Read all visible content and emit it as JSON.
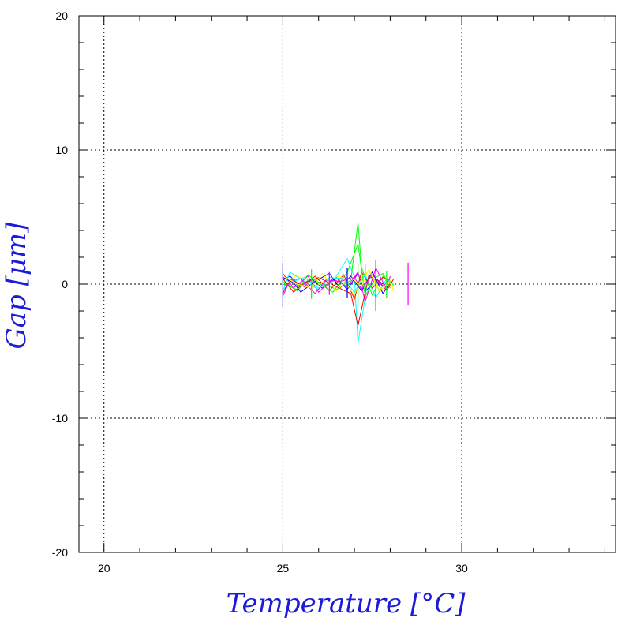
{
  "chart_data": {
    "type": "line",
    "title": "",
    "xlabel": "Temperature [°C]",
    "ylabel": "Gap [μm]",
    "xlim": [
      19.3,
      34.3
    ],
    "ylim": [
      -20,
      20
    ],
    "x_ticks": [
      "20",
      "25",
      "30"
    ],
    "y_ticks": [
      "20",
      "10",
      "0",
      "-10",
      "-20"
    ],
    "x_tick_values": [
      20,
      25,
      30
    ],
    "y_tick_values": [
      20,
      10,
      0,
      -10,
      -20
    ],
    "x_minor_step": 1,
    "y_minor_step": 2,
    "grid": true,
    "series_colors": [
      "#0000ff",
      "#00ffff",
      "#00ff00",
      "#ff0000",
      "#ff00ff",
      "#ffff00"
    ],
    "series": [
      {
        "x": [
          25.0,
          25.2,
          25.5,
          25.8,
          26.1,
          26.5,
          26.8,
          27.1,
          27.3,
          27.6,
          27.9
        ],
        "y": [
          0.3,
          0.6,
          -0.2,
          0.4,
          -0.3,
          0.5,
          -0.4,
          0.8,
          -0.6,
          0.4,
          -0.2
        ]
      },
      {
        "x": [
          25.0,
          25.3,
          25.6,
          26.0,
          26.4,
          26.8,
          27.0,
          27.1,
          27.4,
          27.7,
          28.0
        ],
        "y": [
          -0.4,
          0.2,
          0.5,
          -0.3,
          0.2,
          1.9,
          0.5,
          -4.4,
          0.7,
          -0.5,
          0.3
        ]
      },
      {
        "x": [
          25.0,
          25.4,
          25.7,
          26.1,
          26.5,
          26.9,
          27.1,
          27.2,
          27.5,
          27.8,
          28.1
        ],
        "y": [
          0.2,
          -0.5,
          0.3,
          0.1,
          -0.4,
          0.3,
          4.6,
          1.2,
          -0.8,
          0.6,
          -0.1
        ]
      },
      {
        "x": [
          25.0,
          25.2,
          25.6,
          25.9,
          26.3,
          26.7,
          27.0,
          27.2,
          27.5,
          27.8,
          28.0
        ],
        "y": [
          -0.7,
          0.4,
          -0.2,
          0.6,
          -0.5,
          0.7,
          -1.1,
          0.9,
          -0.3,
          0.5,
          0.2
        ]
      },
      {
        "x": [
          25.0,
          25.3,
          25.7,
          26.0,
          26.4,
          26.8,
          27.1,
          27.3,
          27.6,
          27.9,
          28.0
        ],
        "y": [
          0.8,
          -0.3,
          0.6,
          -0.6,
          0.4,
          -0.2,
          0.9,
          -1.3,
          1.2,
          -0.4,
          0.6
        ]
      },
      {
        "x": [
          25.0,
          25.4,
          25.8,
          26.2,
          26.6,
          27.0,
          27.2,
          27.4,
          27.7,
          28.0,
          28.1
        ],
        "y": [
          -0.2,
          0.7,
          -0.4,
          0.3,
          0.6,
          -0.8,
          0.4,
          1.0,
          -0.6,
          0.3,
          -0.4
        ]
      },
      {
        "x": [
          25.0,
          25.3,
          25.5,
          25.9,
          26.3,
          26.6,
          26.9,
          27.2,
          27.5,
          27.8,
          28.0
        ],
        "y": [
          0.5,
          0.1,
          -0.6,
          0.2,
          0.8,
          -0.3,
          0.6,
          -0.5,
          0.9,
          -0.7,
          0.1
        ]
      },
      {
        "x": [
          25.0,
          25.2,
          25.6,
          26.0,
          26.3,
          26.7,
          27.0,
          27.3,
          27.6,
          27.9,
          28.1
        ],
        "y": [
          -0.5,
          0.9,
          0.2,
          -0.4,
          0.5,
          0.4,
          -0.6,
          0.7,
          -1.0,
          0.4,
          0.0
        ]
      },
      {
        "x": [
          25.0,
          25.4,
          25.7,
          26.1,
          26.4,
          26.8,
          27.1,
          27.3,
          27.6,
          27.8,
          28.0
        ],
        "y": [
          0.0,
          -0.4,
          0.7,
          -0.1,
          -0.6,
          0.9,
          3.0,
          -0.9,
          0.5,
          0.8,
          -0.3
        ]
      },
      {
        "x": [
          25.0,
          25.3,
          25.6,
          26.0,
          26.5,
          26.9,
          27.1,
          27.4,
          27.7,
          27.9,
          28.1
        ],
        "y": [
          0.4,
          -0.6,
          0.1,
          0.5,
          -0.2,
          -0.7,
          -3.1,
          0.6,
          0.2,
          -0.5,
          0.4
        ]
      },
      {
        "x": [
          25.0,
          25.2,
          25.5,
          25.9,
          26.2,
          26.6,
          27.0,
          27.2,
          27.5,
          27.8,
          28.0
        ],
        "y": [
          -0.9,
          0.3,
          0.4,
          -0.7,
          0.3,
          0.2,
          0.5,
          -0.4,
          0.7,
          -0.2,
          0.5
        ]
      },
      {
        "x": [
          25.0,
          25.4,
          25.8,
          26.1,
          26.5,
          26.9,
          27.2,
          27.4,
          27.7,
          28.0,
          28.1
        ],
        "y": [
          0.6,
          0.0,
          -0.3,
          0.8,
          -0.5,
          0.5,
          -0.2,
          1.1,
          -0.4,
          0.1,
          -0.6
        ]
      }
    ],
    "markers": [
      {
        "x": 25.0,
        "y0": -1.7,
        "y1": 1.6
      },
      {
        "x": 25.8,
        "y0": -1.1,
        "y1": 1.1
      },
      {
        "x": 26.3,
        "y0": -0.8,
        "y1": 0.9
      },
      {
        "x": 26.8,
        "y0": -1.0,
        "y1": 1.2
      },
      {
        "x": 27.1,
        "y0": -1.5,
        "y1": 1.5
      },
      {
        "x": 27.3,
        "y0": -1.2,
        "y1": 1.5
      },
      {
        "x": 27.6,
        "y0": -2.0,
        "y1": 1.8
      },
      {
        "x": 27.9,
        "y0": -1.0,
        "y1": 1.0
      },
      {
        "x": 28.5,
        "y0": -1.6,
        "y1": 1.6
      }
    ]
  }
}
